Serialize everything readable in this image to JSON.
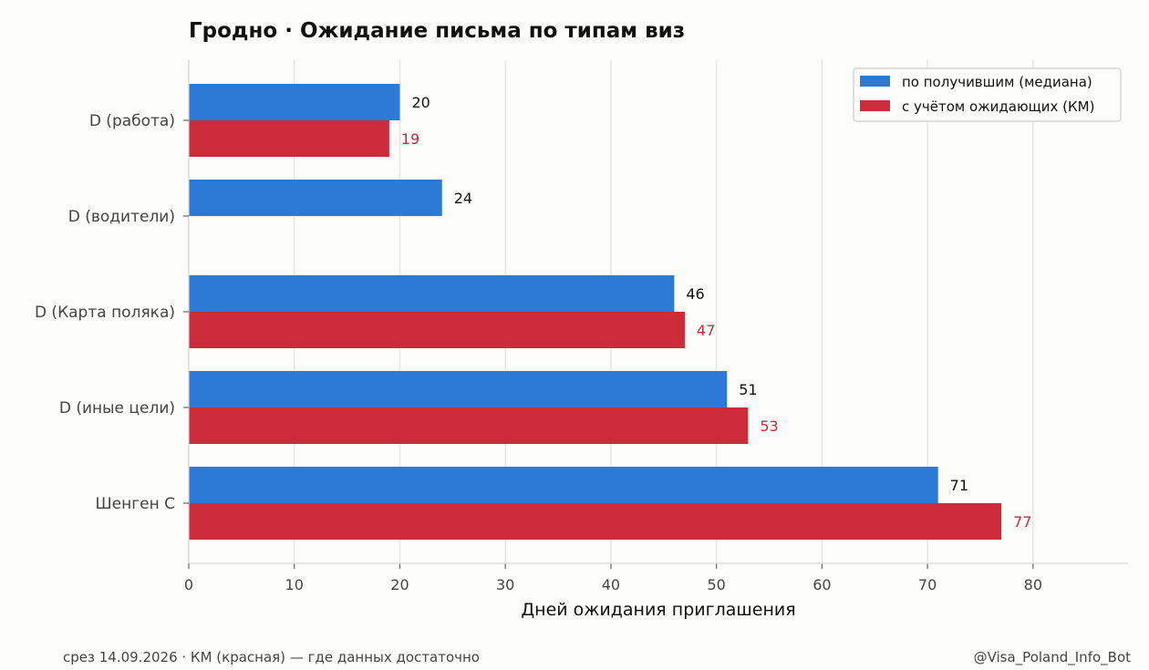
{
  "chart_data": {
    "type": "bar",
    "orientation": "horizontal",
    "title": "Гродно · Ожидание письма по типам виз",
    "xlabel": "Дней ожидания приглашения",
    "ylabel": "",
    "xlim": [
      0,
      89
    ],
    "x_ticks": [
      0,
      10,
      20,
      30,
      40,
      50,
      60,
      70,
      80
    ],
    "grid": "vertical",
    "legend_position": "top-right",
    "categories": [
      "D (работа)",
      "D (водители)",
      "D (Карта поляка)",
      "D (иные цели)",
      "Шенген С"
    ],
    "series": [
      {
        "name": "по получившим (медиана)",
        "color": "#2b7bd6",
        "label_color": "#111111",
        "values": [
          20,
          24,
          46,
          51,
          71
        ]
      },
      {
        "name": "с учётом ожидающих (КМ)",
        "color": "#cc2b3a",
        "label_color": "#cc2b3a",
        "values": [
          19,
          null,
          47,
          53,
          77
        ]
      }
    ]
  },
  "footer": {
    "left": "срез 14.09.2026 · КМ (красная) — где данных достаточно",
    "right": "@Visa_Poland_Info_Bot"
  }
}
